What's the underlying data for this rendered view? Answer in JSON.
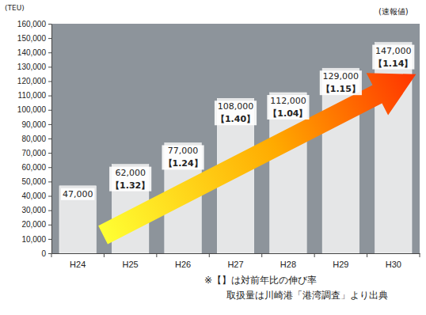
{
  "chart_data": {
    "type": "bar",
    "categories": [
      "H24",
      "H25",
      "H26",
      "H27",
      "H28",
      "H29",
      "H30"
    ],
    "values": [
      47000,
      62000,
      77000,
      108000,
      112000,
      129000,
      147000
    ],
    "value_labels": [
      "47,000",
      "62,000",
      "77,000",
      "108,000",
      "112,000",
      "129,000",
      "147,000"
    ],
    "growth": [
      null,
      1.32,
      1.24,
      1.4,
      1.04,
      1.15,
      1.14
    ],
    "growth_labels": [
      null,
      "【1.32】",
      "【1.24】",
      "【1.40】",
      "【1.04】",
      "【1.15】",
      "【1.14】"
    ],
    "color": "#f4f4f4",
    "ylim": [
      0,
      160000
    ],
    "yticks": [
      0,
      {
        "value": 10000,
        "label": "10,000"
      },
      {
        "value": 20000,
        "label": "20,000"
      },
      {
        "value": 30000,
        "label": "30,000"
      },
      {
        "value": 40000,
        "label": "40,000"
      },
      {
        "value": 50000,
        "label": "50,000"
      },
      {
        "value": 60000,
        "label": "60,000"
      },
      {
        "value": 70000,
        "label": "70,000"
      },
      {
        "value": 80000,
        "label": "80,000"
      },
      {
        "value": 90000,
        "label": "90,000"
      },
      {
        "value": 100000,
        "label": "100,000"
      },
      {
        "value": 110000,
        "label": "110,000"
      },
      {
        "value": 120000,
        "label": "120,000"
      },
      {
        "value": 130000,
        "label": "130,000"
      },
      {
        "value": 140000,
        "label": "140,000"
      },
      {
        "value": 150000,
        "label": "150,000"
      },
      {
        "value": 160000,
        "label": "160,000"
      }
    ],
    "y_label": "(TEU)",
    "annotations": [
      {
        "text": "(速報値)",
        "x": "H30"
      }
    ],
    "notes": [
      "※【】は対前年比の伸び率",
      "取扱量は川崎港「港湾調査」より出典"
    ],
    "data_labels": true,
    "grid": false
  }
}
